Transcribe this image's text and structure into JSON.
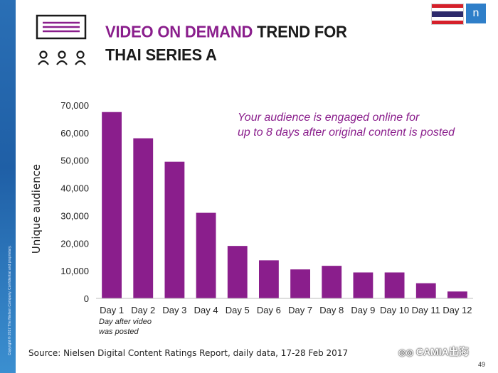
{
  "slide": {
    "title_accent": "VIDEO ON DEMAND",
    "title_rest": " TREND FOR",
    "title_line2": "THAI SERIES A",
    "logo_letter": "n",
    "source": "Source: Nielsen Digital Content Ratings Report, daily data, 17-28 Feb 2017",
    "watermark": "CAMIA出海",
    "page_number": "49",
    "copyright": "Copyright © 2017 The Nielsen Company. Confidential and proprietary.",
    "flag_colors": [
      "#d5202a",
      "#ffffff",
      "#2d2a6b",
      "#ffffff",
      "#d5202a"
    ],
    "accent_color": "#8a1e8c",
    "icons": [
      "list-window-icon",
      "audience-people-icon"
    ]
  },
  "chart_data": {
    "type": "bar",
    "categories": [
      "Day 1",
      "Day 2",
      "Day 3",
      "Day 4",
      "Day 5",
      "Day 6",
      "Day 7",
      "Day 8",
      "Day 9",
      "Day 10",
      "Day 11",
      "Day 12"
    ],
    "values": [
      67500,
      58000,
      49500,
      31000,
      19000,
      13800,
      10500,
      11800,
      9400,
      9400,
      5500,
      2500
    ],
    "ylabel": "Unique audience",
    "xlabel": "",
    "ylim": [
      0,
      70000
    ],
    "yticks": [
      "0",
      "10,000",
      "20,000",
      "30,000",
      "40,000",
      "50,000",
      "60,000",
      "70,000"
    ],
    "bar_color": "#8a1e8c",
    "annotation_line1": "Your audience is engaged online for",
    "annotation_line2": "up to 8 days after original content is posted",
    "x_note_line1": "Day after video",
    "x_note_line2": "was posted",
    "grid": false,
    "legend": "none"
  }
}
